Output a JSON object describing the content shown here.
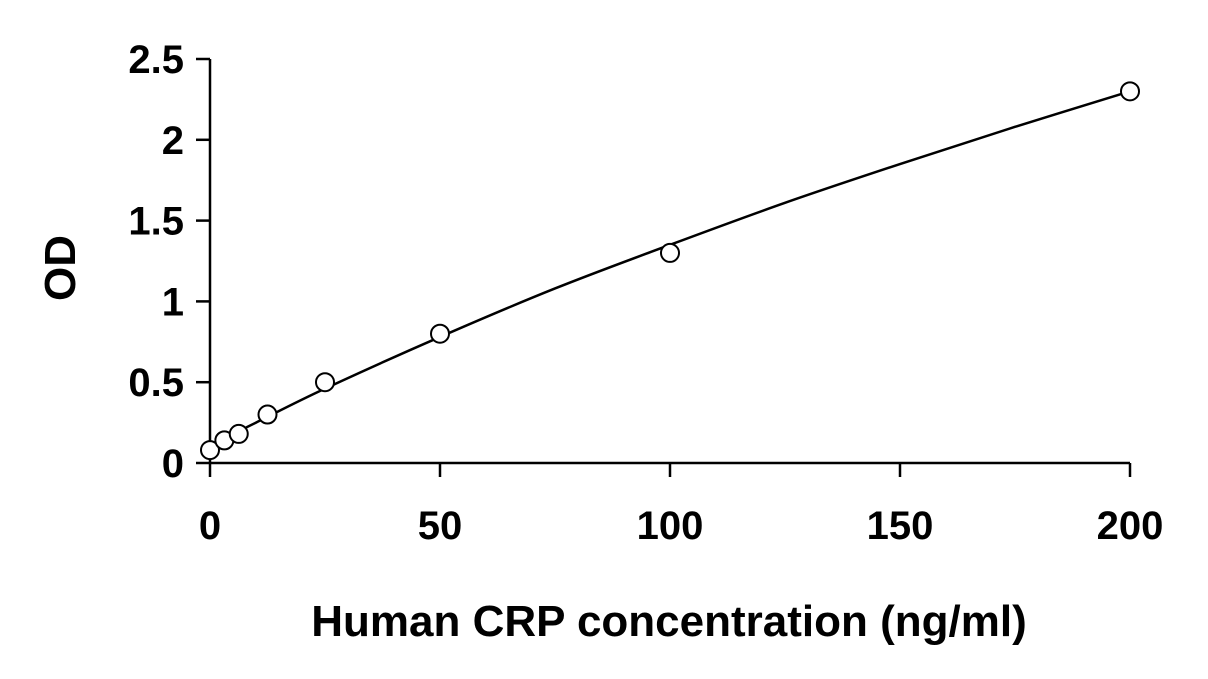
{
  "chart_data": {
    "type": "scatter",
    "title": "",
    "xlabel": "Human CRP concentration (ng/ml)",
    "ylabel": "OD",
    "xlim": [
      0,
      200
    ],
    "ylim": [
      0,
      2.5
    ],
    "x_ticks": [
      0,
      50,
      100,
      150,
      200
    ],
    "y_ticks": [
      0,
      0.5,
      1,
      1.5,
      2,
      2.5
    ],
    "x_tick_labels": [
      "0",
      "50",
      "100",
      "150",
      "200"
    ],
    "y_tick_labels": [
      "0",
      "0.5",
      "1",
      "1.5",
      "2",
      "2.5"
    ],
    "grid": false,
    "legend": "none",
    "series": [
      {
        "marker": "open-circle",
        "points": [
          {
            "x": 0,
            "y": 0.08
          },
          {
            "x": 3.125,
            "y": 0.14
          },
          {
            "x": 6.25,
            "y": 0.18
          },
          {
            "x": 12.5,
            "y": 0.3
          },
          {
            "x": 25,
            "y": 0.5
          },
          {
            "x": 50,
            "y": 0.8
          },
          {
            "x": 100,
            "y": 1.3
          },
          {
            "x": 200,
            "y": 2.3
          }
        ]
      }
    ],
    "fit_curve": {
      "type": "smooth-fit",
      "color": "#000000",
      "points": [
        {
          "x": 0,
          "y": 0.11
        },
        {
          "x": 10,
          "y": 0.25
        },
        {
          "x": 25,
          "y": 0.46
        },
        {
          "x": 50,
          "y": 0.78
        },
        {
          "x": 75,
          "y": 1.08
        },
        {
          "x": 100,
          "y": 1.35
        },
        {
          "x": 125,
          "y": 1.61
        },
        {
          "x": 150,
          "y": 1.85
        },
        {
          "x": 175,
          "y": 2.08
        },
        {
          "x": 200,
          "y": 2.3
        }
      ]
    },
    "colors": {
      "axis": "#000000",
      "marker_stroke": "#000000",
      "marker_fill": "#ffffff",
      "background": "#ffffff"
    }
  }
}
